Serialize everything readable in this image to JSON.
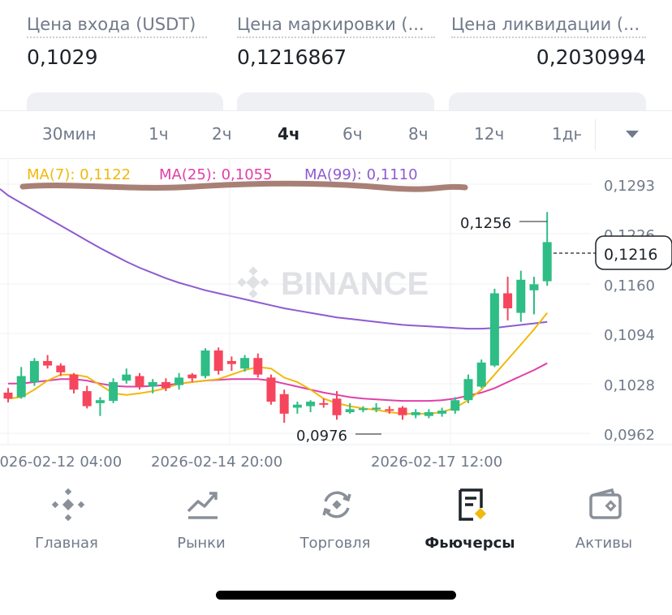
{
  "stats": [
    {
      "label": "Цена входа (USDT)",
      "value": "0,1029"
    },
    {
      "label": "Цена маркировки (...",
      "value": "0,1216867"
    },
    {
      "label": "Цена ликвидации (...",
      "value": "0,2030994"
    }
  ],
  "intervals": [
    {
      "label": "30мин",
      "active": false
    },
    {
      "label": "1ч",
      "active": false
    },
    {
      "label": "2ч",
      "active": false
    },
    {
      "label": "4ч",
      "active": true
    },
    {
      "label": "6ч",
      "active": false
    },
    {
      "label": "8ч",
      "active": false
    },
    {
      "label": "12ч",
      "active": false
    },
    {
      "label": "1дн",
      "active": false
    }
  ],
  "colors": {
    "up": "#2ebd85",
    "down": "#f6465d",
    "ma7": "#f0b90b",
    "ma25": "#e040a8",
    "ma99": "#8e5bd0",
    "watermark": "#dfe1e5"
  },
  "chart": {
    "watermark": "BINANCE",
    "ma_legend": [
      {
        "label": "MA(7): 0,1122",
        "color": "#f0b90b"
      },
      {
        "label": "MA(25): 0,1055",
        "color": "#e040a8"
      },
      {
        "label": "MA(99): 0,1110",
        "color": "#8e5bd0"
      }
    ],
    "y_ticks": [
      "0,1293",
      "0,1226",
      "0,1160",
      "0,1094",
      "0,1028",
      "0,0962"
    ],
    "x_ticks": [
      "2026-02-12 04:00",
      "2026-02-14 20:00",
      "2026-02-17 12:00"
    ],
    "current_price": "0,1216",
    "high_annotation": "0,1256",
    "low_annotation": "0,0976"
  },
  "chart_data": {
    "type": "candlestick",
    "interval": "4ч",
    "ylim": [
      0.0962,
      0.1293
    ],
    "candles": [
      {
        "o": 0.1016,
        "h": 0.1022,
        "l": 0.1003,
        "c": 0.1008
      },
      {
        "o": 0.101,
        "h": 0.105,
        "l": 0.1008,
        "c": 0.1038
      },
      {
        "o": 0.103,
        "h": 0.1062,
        "l": 0.1025,
        "c": 0.1058
      },
      {
        "o": 0.1058,
        "h": 0.1066,
        "l": 0.1048,
        "c": 0.1052
      },
      {
        "o": 0.1052,
        "h": 0.1055,
        "l": 0.1038,
        "c": 0.1043
      },
      {
        "o": 0.104,
        "h": 0.1042,
        "l": 0.1015,
        "c": 0.102
      },
      {
        "o": 0.1018,
        "h": 0.1025,
        "l": 0.0995,
        "c": 0.0998
      },
      {
        "o": 0.1002,
        "h": 0.101,
        "l": 0.0985,
        "c": 0.1006
      },
      {
        "o": 0.1005,
        "h": 0.1035,
        "l": 0.1002,
        "c": 0.103
      },
      {
        "o": 0.1032,
        "h": 0.1048,
        "l": 0.1028,
        "c": 0.104
      },
      {
        "o": 0.1038,
        "h": 0.1042,
        "l": 0.102,
        "c": 0.1024
      },
      {
        "o": 0.1024,
        "h": 0.1034,
        "l": 0.1015,
        "c": 0.103
      },
      {
        "o": 0.103,
        "h": 0.1035,
        "l": 0.1018,
        "c": 0.1022
      },
      {
        "o": 0.1026,
        "h": 0.1042,
        "l": 0.102,
        "c": 0.1036
      },
      {
        "o": 0.104,
        "h": 0.1042,
        "l": 0.103,
        "c": 0.1035
      },
      {
        "o": 0.1038,
        "h": 0.1075,
        "l": 0.1035,
        "c": 0.1072
      },
      {
        "o": 0.1072,
        "h": 0.1076,
        "l": 0.104,
        "c": 0.1045
      },
      {
        "o": 0.1058,
        "h": 0.1064,
        "l": 0.1045,
        "c": 0.1054
      },
      {
        "o": 0.1048,
        "h": 0.1066,
        "l": 0.1044,
        "c": 0.1062
      },
      {
        "o": 0.1062,
        "h": 0.1068,
        "l": 0.1036,
        "c": 0.104
      },
      {
        "o": 0.1036,
        "h": 0.104,
        "l": 0.1,
        "c": 0.1004
      },
      {
        "o": 0.1014,
        "h": 0.102,
        "l": 0.0976,
        "c": 0.0988
      },
      {
        "o": 0.0996,
        "h": 0.1004,
        "l": 0.0988,
        "c": 0.1
      },
      {
        "o": 0.0998,
        "h": 0.1006,
        "l": 0.099,
        "c": 0.1004
      },
      {
        "o": 0.1002,
        "h": 0.1008,
        "l": 0.0996,
        "c": 0.1
      },
      {
        "o": 0.1008,
        "h": 0.1018,
        "l": 0.098,
        "c": 0.0986
      },
      {
        "o": 0.099,
        "h": 0.1002,
        "l": 0.0988,
        "c": 0.0994
      },
      {
        "o": 0.0994,
        "h": 0.0998,
        "l": 0.099,
        "c": 0.0995
      },
      {
        "o": 0.0996,
        "h": 0.1002,
        "l": 0.099,
        "c": 0.0996
      },
      {
        "o": 0.0994,
        "h": 0.0998,
        "l": 0.0988,
        "c": 0.0992
      },
      {
        "o": 0.0996,
        "h": 0.0998,
        "l": 0.098,
        "c": 0.0986
      },
      {
        "o": 0.0986,
        "h": 0.0994,
        "l": 0.0982,
        "c": 0.099
      },
      {
        "o": 0.0985,
        "h": 0.0994,
        "l": 0.0982,
        "c": 0.099
      },
      {
        "o": 0.0988,
        "h": 0.0996,
        "l": 0.0984,
        "c": 0.0992
      },
      {
        "o": 0.0992,
        "h": 0.101,
        "l": 0.0988,
        "c": 0.1006
      },
      {
        "o": 0.1006,
        "h": 0.104,
        "l": 0.1002,
        "c": 0.1034
      },
      {
        "o": 0.1024,
        "h": 0.106,
        "l": 0.1022,
        "c": 0.1056
      },
      {
        "o": 0.1052,
        "h": 0.1154,
        "l": 0.105,
        "c": 0.1148
      },
      {
        "o": 0.1148,
        "h": 0.117,
        "l": 0.1112,
        "c": 0.1128
      },
      {
        "o": 0.1122,
        "h": 0.1178,
        "l": 0.111,
        "c": 0.1166
      },
      {
        "o": 0.1152,
        "h": 0.117,
        "l": 0.112,
        "c": 0.116
      },
      {
        "o": 0.1164,
        "h": 0.1256,
        "l": 0.1158,
        "c": 0.1216
      }
    ],
    "ma7": [
      0.1008,
      0.101,
      0.102,
      0.1032,
      0.104,
      0.104,
      0.1037,
      0.1026,
      0.1015,
      0.1013,
      0.1015,
      0.1018,
      0.1022,
      0.1028,
      0.103,
      0.1032,
      0.1034,
      0.104,
      0.1046,
      0.105,
      0.1048,
      0.1036,
      0.103,
      0.102,
      0.1008,
      0.1002,
      0.0998,
      0.0995,
      0.0993,
      0.099,
      0.0988,
      0.0988,
      0.0988,
      0.099,
      0.0996,
      0.1006,
      0.102,
      0.104,
      0.106,
      0.108,
      0.11,
      0.1122
    ],
    "ma25": [
      0.1028,
      0.1028,
      0.103,
      0.1032,
      0.1034,
      0.1034,
      0.1032,
      0.1028,
      0.1025,
      0.1024,
      0.1024,
      0.1025,
      0.1026,
      0.1028,
      0.103,
      0.1032,
      0.1033,
      0.1034,
      0.1034,
      0.1034,
      0.1032,
      0.1028,
      0.1024,
      0.102,
      0.1016,
      0.1013,
      0.101,
      0.1008,
      0.1007,
      0.1006,
      0.1005,
      0.1005,
      0.1005,
      0.1006,
      0.1008,
      0.1012,
      0.1016,
      0.1022,
      0.103,
      0.1038,
      0.1046,
      0.1055
    ],
    "ma99": [
      0.1278,
      0.1268,
      0.1258,
      0.1248,
      0.1238,
      0.1228,
      0.1218,
      0.1208,
      0.1199,
      0.119,
      0.1182,
      0.1175,
      0.1168,
      0.1162,
      0.1157,
      0.1152,
      0.1148,
      0.1144,
      0.114,
      0.1136,
      0.1132,
      0.1128,
      0.1125,
      0.1122,
      0.1119,
      0.1116,
      0.1114,
      0.1112,
      0.111,
      0.1108,
      0.1106,
      0.1105,
      0.1104,
      0.1103,
      0.1102,
      0.1101,
      0.1101,
      0.1102,
      0.1104,
      0.1106,
      0.1108,
      0.111
    ]
  },
  "bottom_nav": [
    {
      "label": "Главная",
      "icon": "binance-logo-icon",
      "active": false
    },
    {
      "label": "Рынки",
      "icon": "market-chart-icon",
      "active": false
    },
    {
      "label": "Торговля",
      "icon": "trade-swap-icon",
      "active": false
    },
    {
      "label": "Фьючерсы",
      "icon": "futures-document-icon",
      "active": true
    },
    {
      "label": "Активы",
      "icon": "wallet-icon",
      "active": false
    }
  ]
}
